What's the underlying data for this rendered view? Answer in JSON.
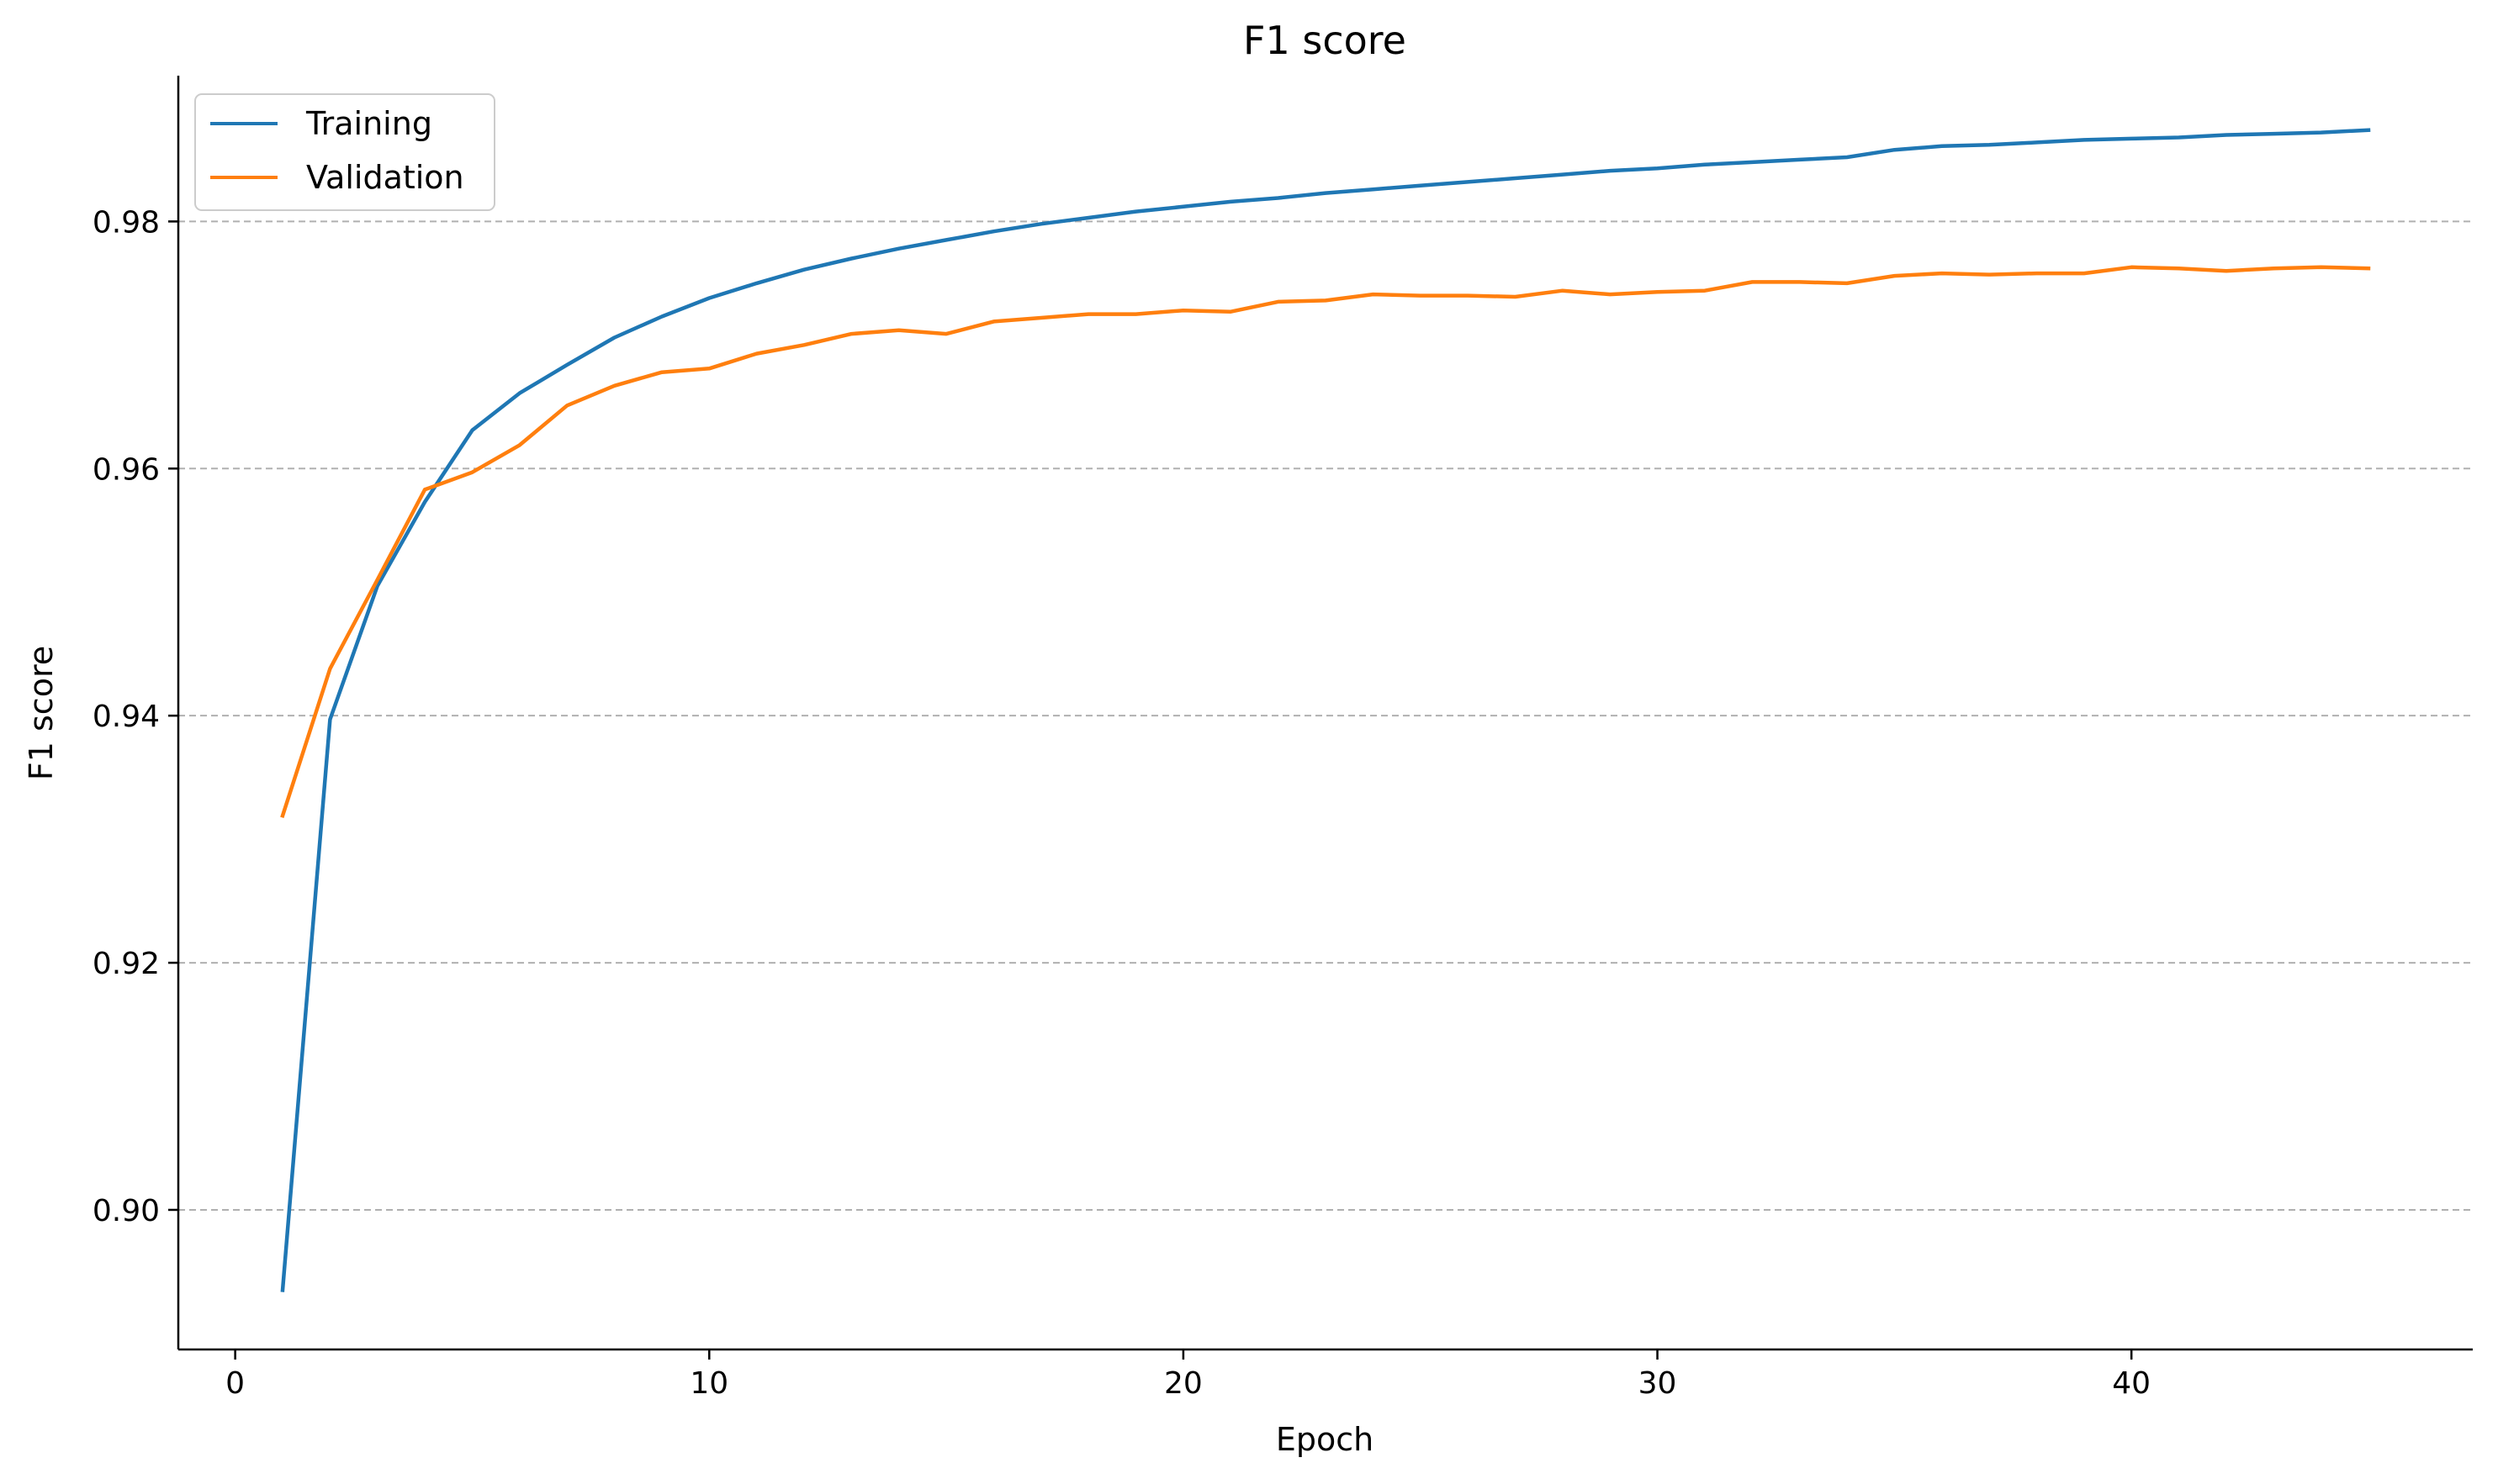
{
  "chart_data": {
    "type": "line",
    "title": "F1 score",
    "xlabel": "Epoch",
    "ylabel": "F1 score",
    "xlim": [
      -1.2,
      47.2
    ],
    "ylim": [
      0.8887,
      0.9918
    ],
    "xticks": [
      0,
      10,
      20,
      30,
      40
    ],
    "xtick_labels": [
      "0",
      "10",
      "20",
      "30",
      "40"
    ],
    "yticks": [
      0.9,
      0.92,
      0.94,
      0.96,
      0.98
    ],
    "ytick_labels": [
      "0.90",
      "0.92",
      "0.94",
      "0.96",
      "0.98"
    ],
    "grid": {
      "axis": "y",
      "style": "dashed"
    },
    "legend": {
      "position": "top-left"
    },
    "x": [
      1,
      2,
      3,
      4,
      5,
      6,
      7,
      8,
      9,
      10,
      11,
      12,
      13,
      14,
      15,
      16,
      17,
      18,
      19,
      20,
      21,
      22,
      23,
      24,
      25,
      26,
      27,
      28,
      29,
      30,
      31,
      32,
      33,
      34,
      35,
      36,
      37,
      38,
      39,
      40,
      41,
      42,
      43,
      44,
      45
    ],
    "series": [
      {
        "name": "Training",
        "color": "#1f77b4",
        "values": [
          0.8935,
          0.9397,
          0.9505,
          0.9573,
          0.9631,
          0.9661,
          0.9684,
          0.9706,
          0.9723,
          0.9738,
          0.975,
          0.9761,
          0.977,
          0.9778,
          0.9785,
          0.9792,
          0.9798,
          0.9803,
          0.9808,
          0.9812,
          0.9816,
          0.9819,
          0.9823,
          0.9826,
          0.9829,
          0.9832,
          0.9835,
          0.9838,
          0.9841,
          0.9843,
          0.9846,
          0.9848,
          0.985,
          0.9852,
          0.9858,
          0.9861,
          0.9862,
          0.9864,
          0.9866,
          0.9867,
          0.9868,
          0.987,
          0.9871,
          0.9872,
          0.9874
        ]
      },
      {
        "name": "Validation",
        "color": "#ff7f0e",
        "values": [
          0.9319,
          0.9438,
          0.951,
          0.9583,
          0.9597,
          0.9619,
          0.9651,
          0.9667,
          0.9678,
          0.9681,
          0.9693,
          0.97,
          0.9709,
          0.9712,
          0.9709,
          0.9719,
          0.9722,
          0.9725,
          0.9725,
          0.9728,
          0.9727,
          0.9735,
          0.9736,
          0.9741,
          0.974,
          0.974,
          0.9739,
          0.9744,
          0.9741,
          0.9743,
          0.9744,
          0.9751,
          0.9751,
          0.975,
          0.9756,
          0.9758,
          0.9757,
          0.9758,
          0.9758,
          0.9763,
          0.9762,
          0.976,
          0.9762,
          0.9763,
          0.9762
        ]
      }
    ]
  }
}
